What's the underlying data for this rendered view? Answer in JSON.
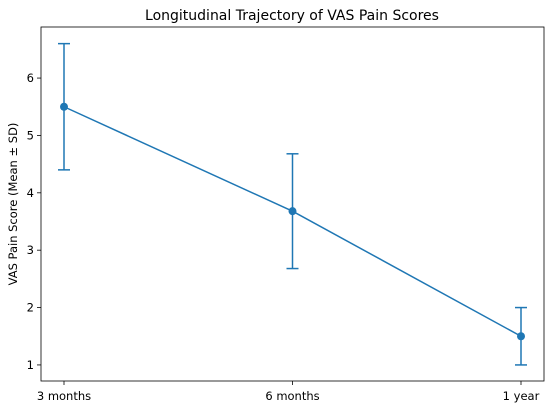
{
  "chart_data": {
    "type": "line",
    "title": "Longitudinal Trajectory of VAS Pain Scores",
    "xlabel": "",
    "ylabel": "VAS Pain Score (Mean ± SD)",
    "categories": [
      "3 months",
      "6 months",
      "1 year"
    ],
    "series": [
      {
        "values": [
          5.5,
          3.68,
          1.5
        ],
        "sd": [
          1.1,
          1.0,
          0.5
        ],
        "color": "#1f77b4"
      }
    ],
    "yticks": [
      1,
      2,
      3,
      4,
      5,
      6
    ],
    "ylim": [
      0.72,
      6.89
    ],
    "grid": false
  }
}
